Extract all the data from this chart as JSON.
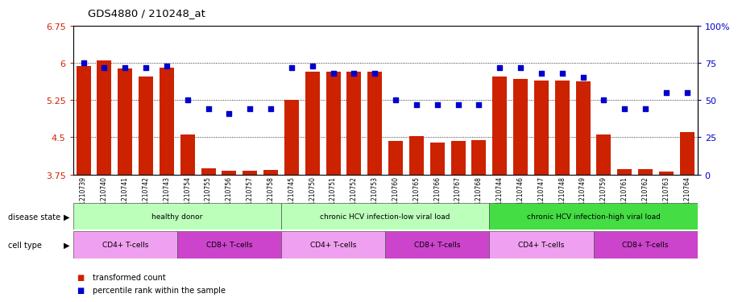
{
  "title": "GDS4880 / 210248_at",
  "samples": [
    "GSM1210739",
    "GSM1210740",
    "GSM1210741",
    "GSM1210742",
    "GSM1210743",
    "GSM1210754",
    "GSM1210755",
    "GSM1210756",
    "GSM1210757",
    "GSM1210758",
    "GSM1210745",
    "GSM1210750",
    "GSM1210751",
    "GSM1210752",
    "GSM1210753",
    "GSM1210760",
    "GSM1210765",
    "GSM1210766",
    "GSM1210767",
    "GSM1210768",
    "GSM1210744",
    "GSM1210746",
    "GSM1210747",
    "GSM1210748",
    "GSM1210749",
    "GSM1210759",
    "GSM1210761",
    "GSM1210762",
    "GSM1210763",
    "GSM1210764"
  ],
  "bar_values": [
    5.93,
    6.05,
    5.88,
    5.72,
    5.9,
    4.55,
    3.87,
    3.83,
    3.83,
    3.84,
    5.25,
    5.82,
    5.82,
    5.82,
    5.82,
    4.42,
    4.52,
    4.4,
    4.43,
    4.44,
    5.73,
    5.68,
    5.65,
    5.65,
    5.62,
    4.55,
    3.85,
    3.85,
    3.8,
    4.6
  ],
  "dot_values": [
    75,
    72,
    72,
    72,
    73,
    50,
    44,
    41,
    44,
    44,
    72,
    73,
    68,
    68,
    68,
    50,
    47,
    47,
    47,
    47,
    72,
    72,
    68,
    68,
    65,
    50,
    44,
    44,
    55,
    55
  ],
  "ylim_left": [
    3.75,
    6.75
  ],
  "ylim_right": [
    0,
    100
  ],
  "yticks_left": [
    3.75,
    4.5,
    5.25,
    6.0,
    6.75
  ],
  "yticks_right": [
    0,
    25,
    50,
    75,
    100
  ],
  "ytick_labels_left": [
    "3.75",
    "4.5",
    "5.25",
    "6",
    "6.75"
  ],
  "ytick_labels_right": [
    "0",
    "25",
    "50",
    "75",
    "100%"
  ],
  "bar_color": "#cc2200",
  "dot_color": "#0000cc",
  "disease_state_groups": [
    {
      "label": "healthy donor",
      "start": 0,
      "end": 9,
      "color": "#aaffaa"
    },
    {
      "label": "chronic HCV infection-low viral load",
      "start": 10,
      "end": 19,
      "color": "#aaffaa"
    },
    {
      "label": "chronic HCV infection-high viral load",
      "start": 20,
      "end": 29,
      "color": "#44dd44"
    }
  ],
  "cell_type_groups": [
    {
      "label": "CD4+ T-cells",
      "start": 0,
      "end": 4,
      "color": "#ee82ee"
    },
    {
      "label": "CD8+ T-cells",
      "start": 5,
      "end": 9,
      "color": "#dd55dd"
    },
    {
      "label": "CD4+ T-cells",
      "start": 10,
      "end": 14,
      "color": "#ee82ee"
    },
    {
      "label": "CD8+ T-cells",
      "start": 15,
      "end": 19,
      "color": "#dd55dd"
    },
    {
      "label": "CD4+ T-cells",
      "start": 20,
      "end": 24,
      "color": "#ee82ee"
    },
    {
      "label": "CD8+ T-cells",
      "start": 25,
      "end": 29,
      "color": "#dd55dd"
    }
  ],
  "disease_state_label": "disease state",
  "cell_type_label": "cell type"
}
